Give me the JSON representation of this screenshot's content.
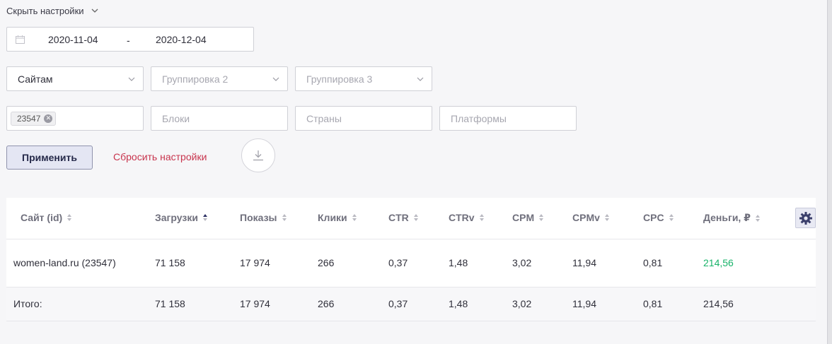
{
  "settings_toggle": {
    "label": "Скрыть настройки"
  },
  "date_range": {
    "from": "2020-11-04",
    "separator": "-",
    "to": "2020-12-04"
  },
  "grouping": {
    "group1": {
      "value": "Сайтам"
    },
    "group2": {
      "placeholder": "Группировка 2"
    },
    "group3": {
      "placeholder": "Группировка 3"
    }
  },
  "filters": {
    "sites": {
      "tags": [
        "23547"
      ]
    },
    "blocks": {
      "placeholder": "Блоки"
    },
    "countries": {
      "placeholder": "Страны"
    },
    "platforms": {
      "placeholder": "Платформы"
    }
  },
  "actions": {
    "apply": "Применить",
    "reset": "Сбросить настройки"
  },
  "table": {
    "columns": [
      "Сайт (id)",
      "Загрузки",
      "Показы",
      "Клики",
      "CTR",
      "CTRv",
      "CPM",
      "CPMv",
      "CPC",
      "Деньги, ₽"
    ],
    "sorted_column": "Загрузки",
    "sorted_direction": "asc",
    "rows": [
      [
        "women-land.ru (23547)",
        "71 158",
        "17 974",
        "266",
        "0,37",
        "1,48",
        "3,02",
        "11,94",
        "0,81",
        "214,56"
      ]
    ],
    "total": [
      "Итого:",
      "71 158",
      "17 974",
      "266",
      "0,37",
      "1,48",
      "3,02",
      "11,94",
      "0,81",
      "214,56"
    ]
  },
  "colors": {
    "accent_money": "#19b36a",
    "reset_link": "#c8344d",
    "sort_active": "#2b2f63"
  },
  "icons": {
    "calendar": "calendar-icon",
    "download": "download-icon",
    "settings": "gear-icon"
  }
}
